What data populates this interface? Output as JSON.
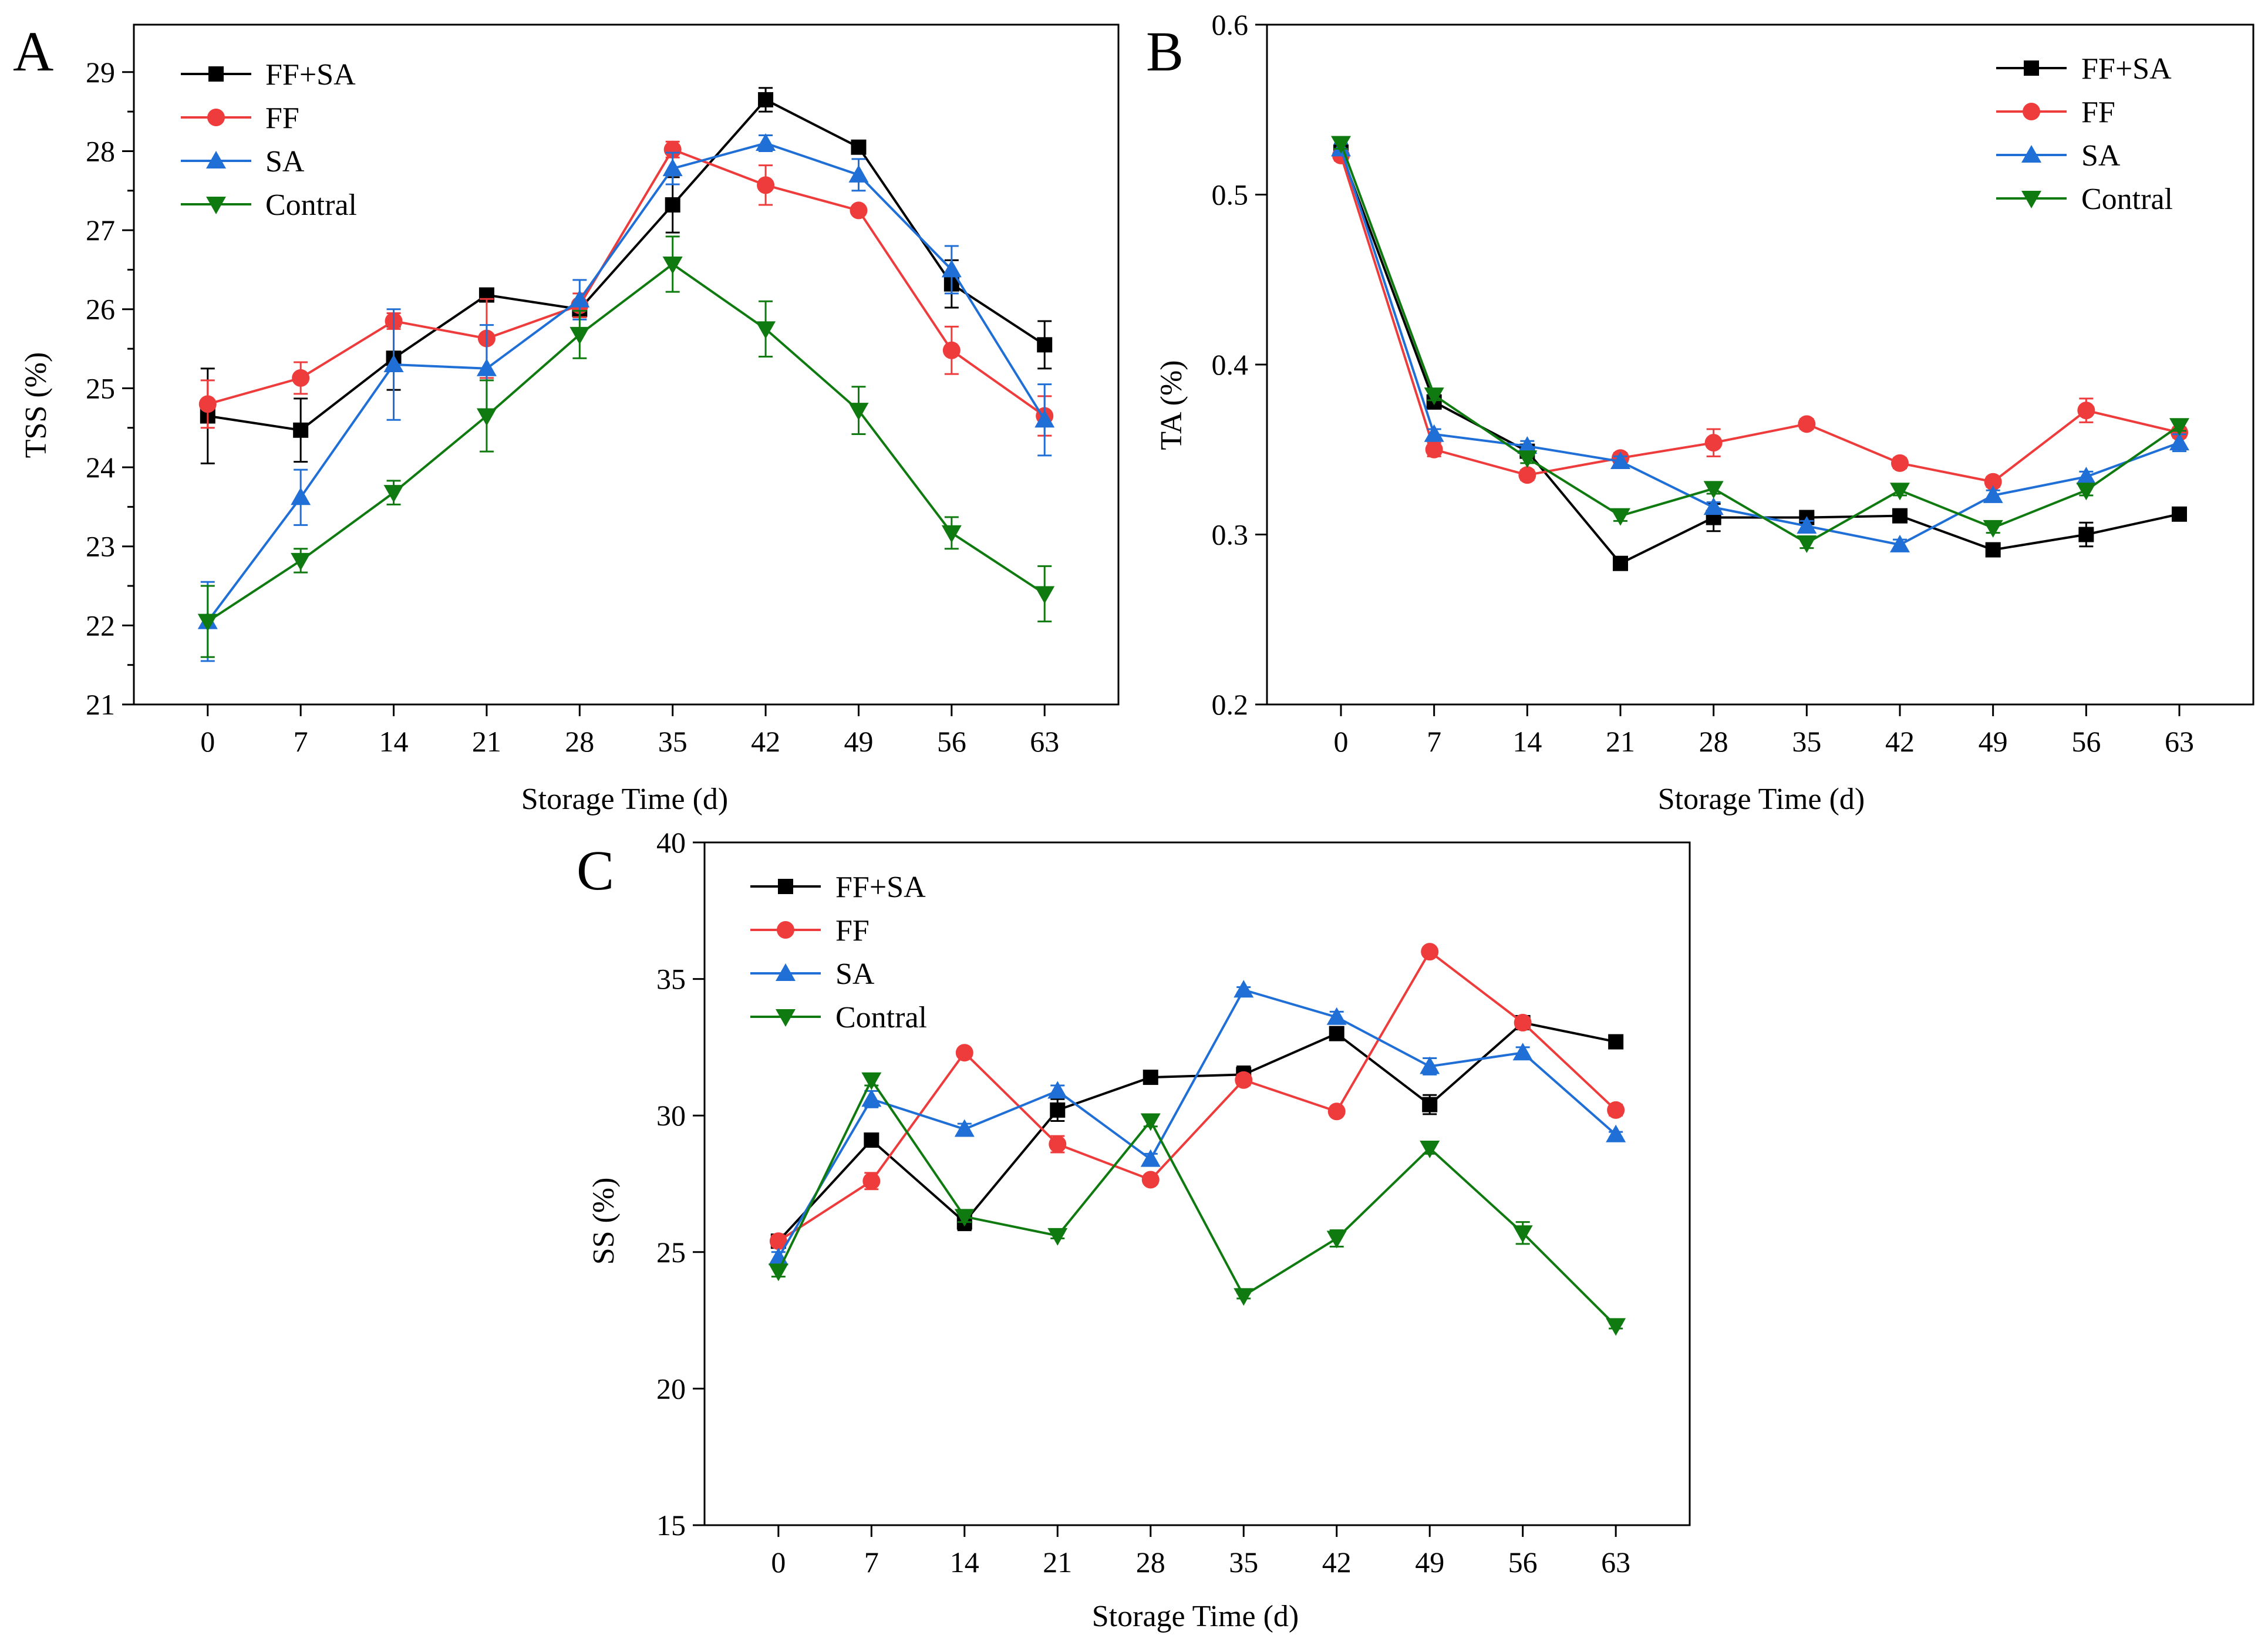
{
  "colors": {
    "FF+SA": "#000000",
    "FF": "#ee3b3b",
    "SA": "#1f6fd6",
    "Contral": "#0f7a0f"
  },
  "chart_data": [
    {
      "panel": "A",
      "type": "line",
      "xlabel": "Storage Time (d)",
      "ylabel": "TSS (%)",
      "ylim": [
        21,
        29.6
      ],
      "yticks": [
        21,
        22,
        23,
        24,
        25,
        26,
        27,
        28,
        29
      ],
      "x": [
        0,
        7,
        14,
        21,
        28,
        35,
        42,
        49,
        56,
        63
      ],
      "legend_position": "top-left",
      "series": [
        {
          "name": "FF+SA",
          "marker": "square",
          "values": [
            24.65,
            24.47,
            25.38,
            26.18,
            26.0,
            27.32,
            28.65,
            28.05,
            26.32,
            25.55
          ],
          "errors": [
            0.6,
            0.4,
            0.4,
            0.05,
            0.1,
            0.35,
            0.15,
            0.05,
            0.3,
            0.3
          ]
        },
        {
          "name": "FF",
          "marker": "circle",
          "values": [
            24.8,
            25.13,
            25.85,
            25.63,
            26.05,
            28.02,
            27.57,
            27.25,
            25.48,
            24.65
          ],
          "errors": [
            0.3,
            0.2,
            0.1,
            0.5,
            0.15,
            0.1,
            0.25,
            0.05,
            0.3,
            0.25
          ]
        },
        {
          "name": "SA",
          "marker": "triangle-up",
          "values": [
            22.05,
            23.62,
            25.3,
            25.25,
            26.12,
            27.78,
            28.1,
            27.7,
            26.5,
            24.6
          ],
          "errors": [
            0.5,
            0.35,
            0.7,
            0.55,
            0.25,
            0.2,
            0.1,
            0.2,
            0.3,
            0.45
          ]
        },
        {
          "name": "Contral",
          "marker": "triangle-down",
          "values": [
            22.05,
            22.82,
            23.68,
            24.65,
            25.68,
            26.57,
            25.75,
            24.72,
            23.17,
            22.4
          ],
          "errors": [
            0.45,
            0.15,
            0.15,
            0.45,
            0.3,
            0.35,
            0.35,
            0.3,
            0.2,
            0.35
          ]
        }
      ]
    },
    {
      "panel": "B",
      "type": "line",
      "xlabel": "Storage Time (d)",
      "ylabel": "TA (%)",
      "ylim": [
        0.2,
        0.6
      ],
      "yticks": [
        0.2,
        0.3,
        0.4,
        0.5,
        0.6
      ],
      "x": [
        0,
        7,
        14,
        21,
        28,
        35,
        42,
        49,
        56,
        63
      ],
      "legend_position": "top-right",
      "series": [
        {
          "name": "FF+SA",
          "marker": "square",
          "values": [
            0.525,
            0.378,
            0.349,
            0.283,
            0.31,
            0.31,
            0.311,
            0.291,
            0.3,
            0.312
          ],
          "errors": [
            0.003,
            0.004,
            0.003,
            0.003,
            0.008,
            0.003,
            0.003,
            0.003,
            0.007,
            0.003
          ]
        },
        {
          "name": "FF",
          "marker": "circle",
          "values": [
            0.523,
            0.35,
            0.335,
            0.345,
            0.354,
            0.365,
            0.342,
            0.331,
            0.373,
            0.36
          ],
          "errors": [
            0.003,
            0.004,
            0.003,
            0.003,
            0.008,
            0.003,
            0.003,
            0.003,
            0.007,
            0.003
          ]
        },
        {
          "name": "SA",
          "marker": "triangle-up",
          "values": [
            0.527,
            0.359,
            0.352,
            0.343,
            0.316,
            0.305,
            0.294,
            0.323,
            0.334,
            0.354
          ],
          "errors": [
            0.003,
            0.003,
            0.003,
            0.003,
            0.003,
            0.003,
            0.003,
            0.003,
            0.003,
            0.005
          ]
        },
        {
          "name": "Contral",
          "marker": "triangle-down",
          "values": [
            0.53,
            0.382,
            0.345,
            0.311,
            0.327,
            0.295,
            0.326,
            0.304,
            0.326,
            0.364
          ],
          "errors": [
            0.003,
            0.003,
            0.003,
            0.003,
            0.003,
            0.003,
            0.003,
            0.003,
            0.003,
            0.003
          ]
        }
      ]
    },
    {
      "panel": "C",
      "type": "line",
      "xlabel": "Storage Time (d)",
      "ylabel": "SS (%)",
      "ylim": [
        15,
        40
      ],
      "yticks": [
        15,
        20,
        25,
        30,
        35,
        40
      ],
      "x": [
        0,
        7,
        14,
        21,
        28,
        35,
        42,
        49,
        56,
        63
      ],
      "legend_position": "top-left",
      "series": [
        {
          "name": "FF+SA",
          "marker": "square",
          "values": [
            25.4,
            29.1,
            26.1,
            30.2,
            31.4,
            31.5,
            33.0,
            30.4,
            33.4,
            32.7
          ],
          "errors": [
            0.2,
            0.2,
            0.3,
            0.4,
            0.1,
            0.3,
            0.1,
            0.35,
            0.2,
            0.1
          ]
        },
        {
          "name": "FF",
          "marker": "circle",
          "values": [
            25.4,
            27.6,
            32.3,
            28.95,
            27.65,
            31.3,
            30.15,
            36.0,
            33.4,
            30.2
          ],
          "errors": [
            0.2,
            0.3,
            0.1,
            0.3,
            0.1,
            0.2,
            0.1,
            0.1,
            0.2,
            0.2
          ]
        },
        {
          "name": "SA",
          "marker": "triangle-up",
          "values": [
            24.8,
            30.6,
            29.5,
            30.9,
            28.4,
            34.6,
            33.6,
            31.8,
            32.3,
            29.3
          ],
          "errors": [
            0.2,
            0.3,
            0.2,
            0.2,
            0.2,
            0.1,
            0.2,
            0.3,
            0.2,
            0.1
          ]
        },
        {
          "name": "Contral",
          "marker": "triangle-down",
          "values": [
            24.3,
            31.3,
            26.3,
            25.6,
            29.8,
            23.4,
            25.5,
            28.8,
            25.7,
            22.3
          ],
          "errors": [
            0.2,
            0.2,
            0.2,
            0.1,
            0.2,
            0.1,
            0.3,
            0.2,
            0.4,
            0.1
          ]
        }
      ]
    }
  ]
}
